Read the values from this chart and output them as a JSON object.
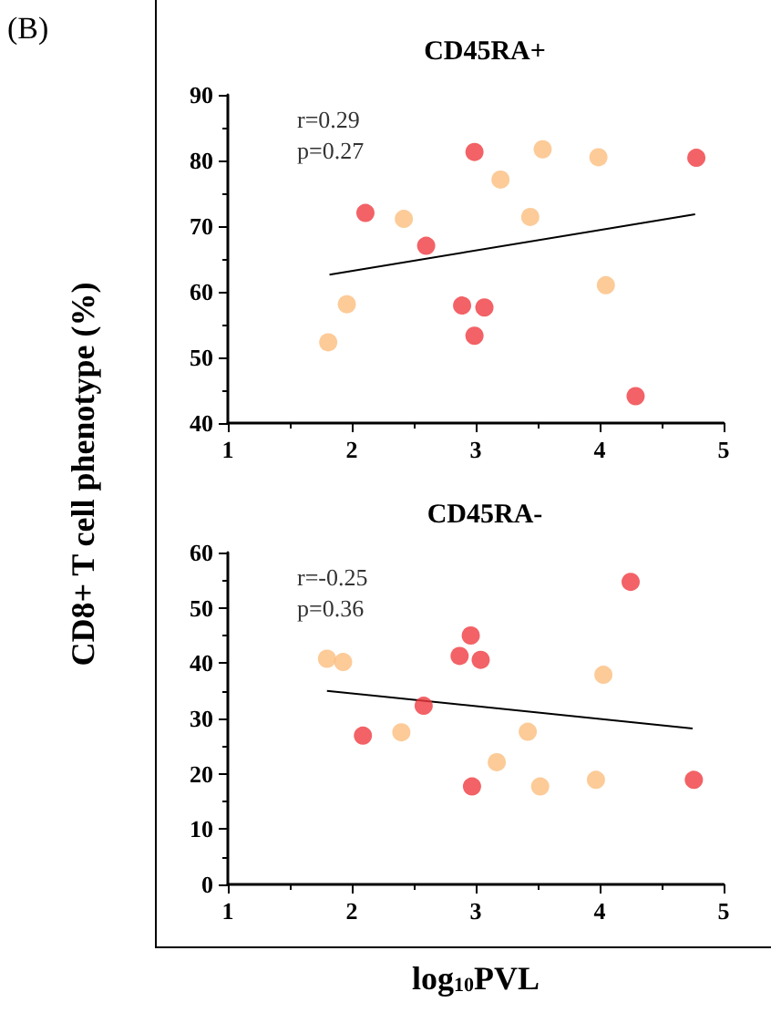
{
  "chart_data": [
    {
      "type": "scatter",
      "title": "CD45RA+",
      "ylabel": "CD8+ T cell phenotype (%)",
      "annotations": [
        "(B)",
        "r=0.29",
        "p=0.27"
      ],
      "xlim": [
        1,
        5
      ],
      "xticks": [
        1,
        2,
        3,
        4,
        5
      ],
      "ylim": [
        40,
        90
      ],
      "yticks": [
        40,
        50,
        60,
        70,
        80,
        90
      ],
      "grid": false,
      "series": [
        {
          "color": "#ef3b40",
          "marker": "circle",
          "x": [
            2.99,
            2.11,
            2.6,
            2.89,
            3.07,
            2.99,
            4.29,
            4.78
          ],
          "values": [
            81.3,
            72.0,
            67.0,
            57.9,
            57.6,
            53.3,
            44.1,
            80.4
          ]
        },
        {
          "color": "#fbbe7e",
          "marker": "circle",
          "x": [
            1.81,
            1.96,
            2.42,
            3.2,
            3.44,
            3.54,
            3.99,
            4.05
          ],
          "values": [
            52.3,
            58.1,
            71.1,
            77.1,
            71.4,
            81.7,
            80.5,
            61.0
          ]
        },
        {
          "type": "line",
          "color": "#000000",
          "line_style": "solid",
          "marker": "none",
          "x": [
            1.82,
            4.77
          ],
          "values": [
            62.6,
            71.8
          ]
        }
      ]
    },
    {
      "type": "scatter",
      "title": "CD45RA-",
      "xlabel": "log$_{10}$PVL",
      "annotations": [
        "r=-0.25",
        "p=0.36"
      ],
      "xlim": [
        1,
        5
      ],
      "xticks": [
        1,
        2,
        3,
        4,
        5
      ],
      "ylim": [
        0,
        60
      ],
      "yticks": [
        0,
        10,
        20,
        30,
        40,
        50,
        60
      ],
      "grid": false,
      "series": [
        {
          "color": "#ef3b40",
          "marker": "circle",
          "x": [
            4.25,
            2.96,
            2.87,
            3.04,
            2.58,
            2.09,
            2.97,
            4.76
          ],
          "values": [
            54.7,
            45.0,
            41.3,
            40.6,
            32.3,
            26.9,
            17.7,
            18.9
          ]
        },
        {
          "color": "#fbbe7e",
          "marker": "circle",
          "x": [
            1.8,
            1.93,
            2.4,
            3.17,
            3.42,
            3.52,
            3.97,
            4.03
          ],
          "values": [
            40.8,
            40.2,
            27.5,
            22.1,
            27.6,
            17.7,
            18.9,
            37.9
          ]
        },
        {
          "type": "line",
          "color": "#000000",
          "line_style": "solid",
          "marker": "none",
          "x": [
            1.8,
            4.75
          ],
          "values": [
            35.0,
            28.2
          ]
        }
      ]
    }
  ]
}
